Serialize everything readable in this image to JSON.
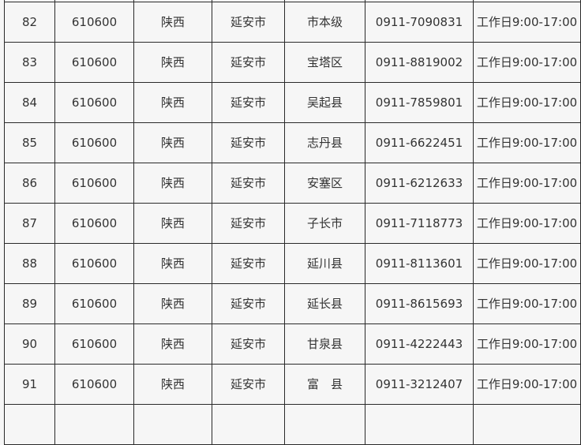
{
  "table": {
    "rows": [
      {
        "no": "",
        "zip": "",
        "province": "",
        "city": "",
        "district": "",
        "phone": "",
        "hours": ""
      },
      {
        "no": "82",
        "zip": "610600",
        "province": "陕西",
        "city": "延安市",
        "district": "市本级",
        "phone": "0911-7090831",
        "hours": "工作日9:00-17:00"
      },
      {
        "no": "83",
        "zip": "610600",
        "province": "陕西",
        "city": "延安市",
        "district": "宝塔区",
        "phone": "0911-8819002",
        "hours": "工作日9:00-17:00"
      },
      {
        "no": "84",
        "zip": "610600",
        "province": "陕西",
        "city": "延安市",
        "district": "吴起县",
        "phone": "0911-7859801",
        "hours": "工作日9:00-17:00"
      },
      {
        "no": "85",
        "zip": "610600",
        "province": "陕西",
        "city": "延安市",
        "district": "志丹县",
        "phone": "0911-6622451",
        "hours": "工作日9:00-17:00"
      },
      {
        "no": "86",
        "zip": "610600",
        "province": "陕西",
        "city": "延安市",
        "district": "安塞区",
        "phone": "0911-6212633",
        "hours": "工作日9:00-17:00"
      },
      {
        "no": "87",
        "zip": "610600",
        "province": "陕西",
        "city": "延安市",
        "district": "子长市",
        "phone": "0911-7118773",
        "hours": "工作日9:00-17:00"
      },
      {
        "no": "88",
        "zip": "610600",
        "province": "陕西",
        "city": "延安市",
        "district": "延川县",
        "phone": "0911-8113601",
        "hours": "工作日9:00-17:00"
      },
      {
        "no": "89",
        "zip": "610600",
        "province": "陕西",
        "city": "延安市",
        "district": "延长县",
        "phone": "0911-8615693",
        "hours": "工作日9:00-17:00"
      },
      {
        "no": "90",
        "zip": "610600",
        "province": "陕西",
        "city": "延安市",
        "district": "甘泉县",
        "phone": "0911-4222443",
        "hours": "工作日9:00-17:00"
      },
      {
        "no": "91",
        "zip": "610600",
        "province": "陕西",
        "city": "延安市",
        "district": "富　县",
        "phone": "0911-3212407",
        "hours": "工作日9:00-17:00"
      },
      {
        "no": "",
        "zip": "",
        "province": "",
        "city": "",
        "district": "",
        "phone": "",
        "hours": ""
      }
    ]
  }
}
